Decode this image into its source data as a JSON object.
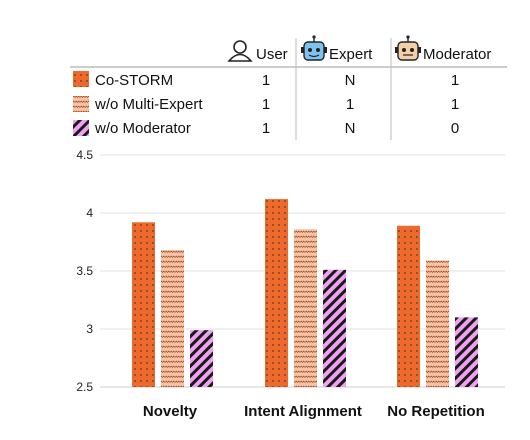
{
  "chart_data": {
    "type": "bar",
    "categories": [
      "Novelty",
      "Intent Alignment",
      "No Repetition"
    ],
    "series": [
      {
        "name": "Co-STORM",
        "values": [
          3.92,
          4.12,
          3.89
        ]
      },
      {
        "name": "w/o Multi-Expert",
        "values": [
          3.68,
          3.86,
          3.59
        ]
      },
      {
        "name": "w/o Moderator",
        "values": [
          2.99,
          3.51,
          3.1
        ]
      }
    ],
    "ylim": [
      2.5,
      4.5
    ],
    "yticks": [
      "2.5",
      "3",
      "3.5",
      "4",
      "4.5"
    ],
    "grid": "horizontal",
    "legend_position": "top",
    "legend_table": {
      "columns": [
        {
          "label": "User",
          "icon": "user-icon"
        },
        {
          "label": "Expert",
          "icon": "robot-expert-icon"
        },
        {
          "label": "Moderator",
          "icon": "robot-moderator-icon"
        }
      ],
      "rows": [
        [
          "1",
          "N",
          "1"
        ],
        [
          "1",
          "1",
          "1"
        ],
        [
          "1",
          "N",
          "0"
        ]
      ],
      "highlight_color": "#e8141b",
      "highlighted_cells": [
        [
          1,
          1
        ],
        [
          2,
          2
        ]
      ]
    },
    "colors": {
      "orange": "#ee6a2c",
      "peach": "#f7c3a4",
      "pink": "#f0a2f2",
      "dark": "#222222"
    }
  }
}
